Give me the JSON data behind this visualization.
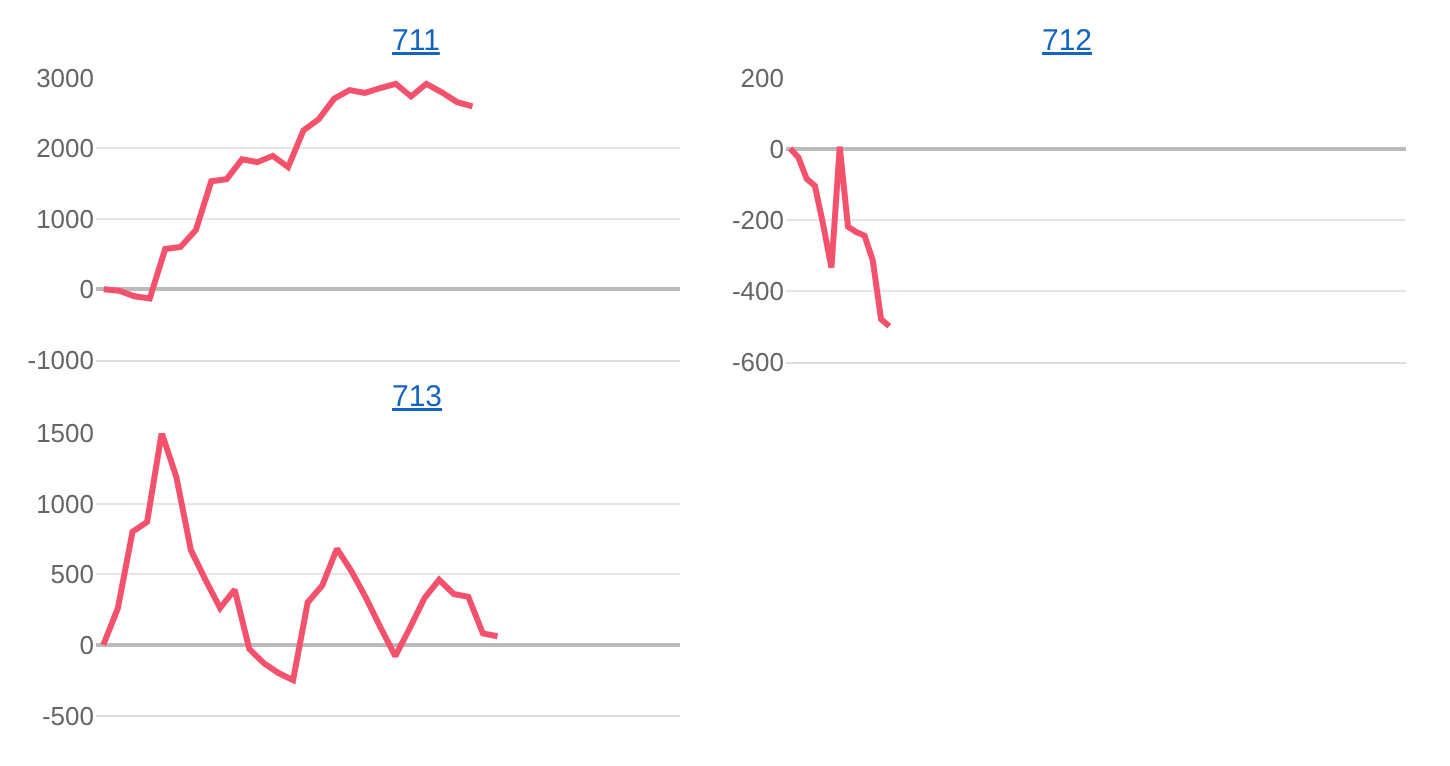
{
  "chart_data": [
    {
      "type": "line",
      "title": "711",
      "color": "#f4516c",
      "grid": "y",
      "tick_labels": "y",
      "marker": "none",
      "categories": [
        null,
        null,
        null,
        null,
        null,
        null,
        null,
        null,
        null,
        null,
        null,
        null,
        null,
        null,
        null,
        null,
        null,
        null,
        null,
        null,
        null,
        null,
        null,
        null,
        null,
        null,
        null,
        null,
        null,
        null,
        null,
        null,
        null,
        null,
        null,
        null,
        null,
        null
      ],
      "values": [
        0,
        -20,
        -100,
        -130,
        570,
        600,
        840,
        1530,
        1560,
        1840,
        1800,
        1890,
        1730,
        2250,
        2410,
        2700,
        2820,
        2780,
        2850,
        2910,
        2730,
        2910,
        2790,
        2650,
        2590,
        null,
        null,
        null,
        null,
        null,
        null,
        null,
        null,
        null,
        null,
        null,
        null,
        null
      ],
      "ylim": [
        -1000,
        3000
      ],
      "yticks": [
        -1000,
        0,
        1000,
        2000,
        3000
      ]
    },
    {
      "type": "line",
      "title": "712",
      "color": "#f4516c",
      "grid": "y",
      "tick_labels": "y",
      "marker": "none",
      "categories": [
        null,
        null,
        null,
        null,
        null,
        null,
        null,
        null,
        null,
        null,
        null,
        null,
        null,
        null,
        null,
        null,
        null,
        null,
        null,
        null,
        null,
        null,
        null,
        null,
        null,
        null,
        null,
        null,
        null,
        null,
        null,
        null,
        null,
        null,
        null,
        null,
        null,
        null,
        null,
        null,
        null,
        null,
        null,
        null,
        null,
        null,
        null,
        null,
        null,
        null,
        null,
        null,
        null,
        null,
        null,
        null,
        null,
        null,
        null,
        null,
        null,
        null,
        null,
        null,
        null,
        null,
        null,
        null,
        null,
        null,
        null,
        null,
        null,
        null,
        null
      ],
      "values": [
        0,
        -25,
        -85,
        -105,
        -215,
        -335,
        5,
        -220,
        -235,
        -245,
        -315,
        -480,
        -500,
        null,
        null,
        null,
        null,
        null,
        null,
        null,
        null,
        null,
        null,
        null,
        null,
        null,
        null,
        null,
        null,
        null,
        null,
        null,
        null,
        null,
        null,
        null,
        null,
        null,
        null,
        null,
        null,
        null,
        null,
        null,
        null,
        null,
        null,
        null,
        null,
        null,
        null,
        null,
        null,
        null,
        null,
        null,
        null,
        null,
        null,
        null,
        null,
        null,
        null,
        null,
        null,
        null,
        null,
        null,
        null,
        null,
        null,
        null,
        null,
        null,
        null
      ],
      "ylim": [
        -600,
        200
      ],
      "yticks": [
        -600,
        -400,
        -200,
        0,
        200
      ]
    },
    {
      "type": "line",
      "title": "713",
      "color": "#f4516c",
      "grid": "y",
      "tick_labels": "y",
      "marker": "none",
      "categories": [
        null,
        null,
        null,
        null,
        null,
        null,
        null,
        null,
        null,
        null,
        null,
        null,
        null,
        null,
        null,
        null,
        null,
        null,
        null,
        null,
        null,
        null,
        null,
        null,
        null,
        null,
        null,
        null,
        null,
        null,
        null,
        null,
        null,
        null,
        null,
        null,
        null,
        null,
        null,
        null
      ],
      "values": [
        0,
        260,
        800,
        870,
        1500,
        1190,
        670,
        460,
        260,
        390,
        -30,
        -130,
        -200,
        -250,
        300,
        420,
        680,
        520,
        330,
        120,
        -80,
        120,
        330,
        460,
        360,
        340,
        80,
        60,
        null,
        null,
        null,
        null,
        null,
        null,
        null,
        null,
        null,
        null,
        null,
        null
      ],
      "ylim": [
        -500,
        1500
      ],
      "yticks": [
        -500,
        0,
        500,
        1000,
        1500
      ]
    }
  ]
}
